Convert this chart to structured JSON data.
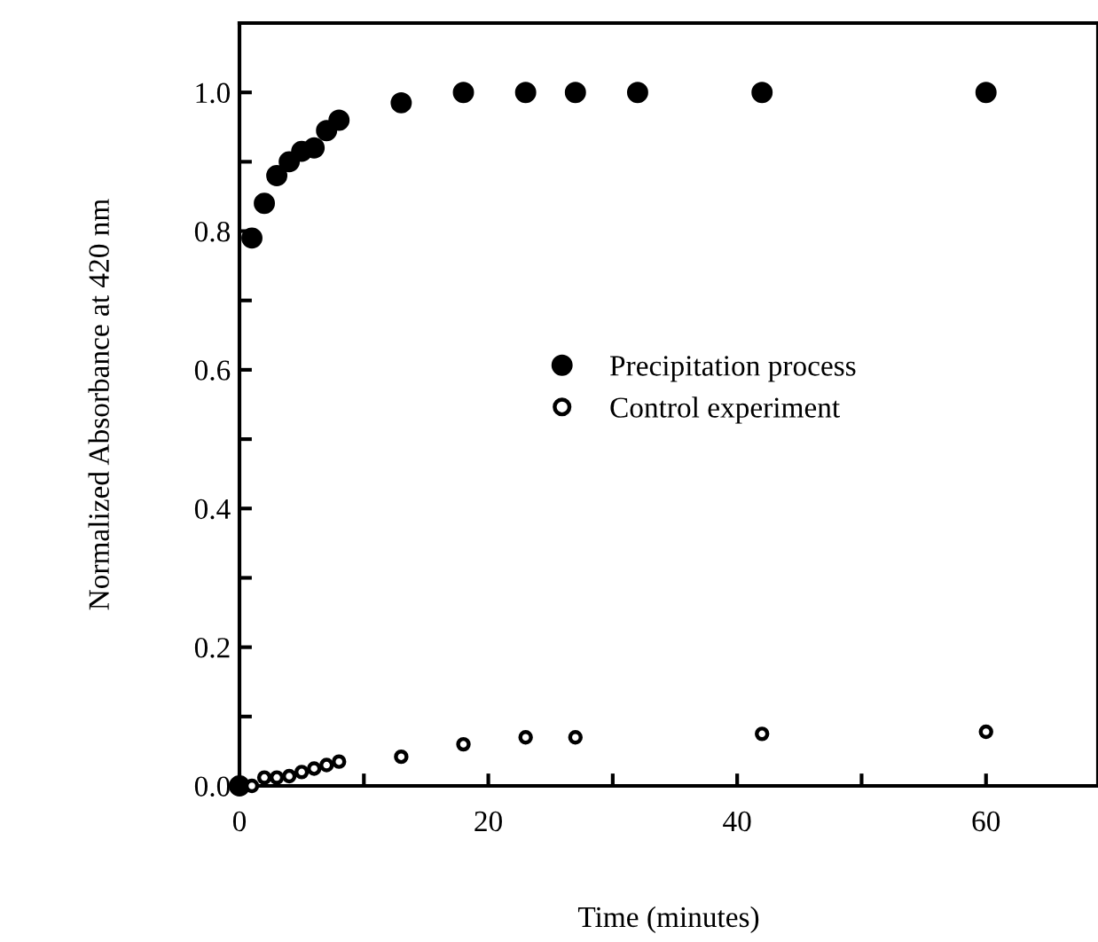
{
  "chart_data": {
    "type": "scatter",
    "xlabel": "Time (minutes)",
    "ylabel": "Normalized Absorbance at 420 nm",
    "xlim": [
      0,
      69
    ],
    "xticks": [
      0,
      {
        "value": 10,
        "label": null
      },
      20,
      {
        "value": 30,
        "label": null
      },
      40,
      {
        "value": 50,
        "label": null
      },
      60
    ],
    "ylim": [
      0,
      1.1
    ],
    "yticks": [
      "0.0",
      {
        "value": 0.1,
        "label": null
      },
      {
        "value": 0.2,
        "label": "0.2"
      },
      {
        "value": 0.3,
        "label": null
      },
      {
        "value": 0.4,
        "label": "0.4"
      },
      {
        "value": 0.5,
        "label": null
      },
      {
        "value": 0.6,
        "label": "0.6"
      },
      {
        "value": 0.7,
        "label": null
      },
      {
        "value": 0.8,
        "label": "0.8"
      },
      {
        "value": 0.9,
        "label": null
      },
      {
        "value": 1.0,
        "label": "1.0"
      }
    ],
    "legend": "center",
    "grid": false,
    "series": [
      {
        "name": "Precipitation process",
        "color": "#000000",
        "marker": "circle",
        "x": [
          0,
          1,
          2,
          3,
          4,
          5,
          6,
          7,
          8,
          13,
          18,
          23,
          27,
          32,
          42,
          60
        ],
        "values": [
          0.0,
          0.79,
          0.84,
          0.88,
          0.9,
          0.915,
          0.92,
          0.945,
          0.96,
          0.985,
          1.0,
          1.0,
          1.0,
          1.0,
          1.0,
          1.0
        ]
      },
      {
        "name": "Control experiment",
        "color": "#000000",
        "marker": "circle",
        "x": [
          1,
          2,
          3,
          4,
          5,
          6,
          7,
          8,
          13,
          18,
          23,
          27,
          42,
          60
        ],
        "values": [
          0.0,
          0.012,
          0.012,
          0.014,
          0.02,
          0.025,
          0.03,
          0.035,
          0.042,
          0.06,
          0.07,
          0.07,
          0.075,
          0.078
        ]
      }
    ]
  }
}
